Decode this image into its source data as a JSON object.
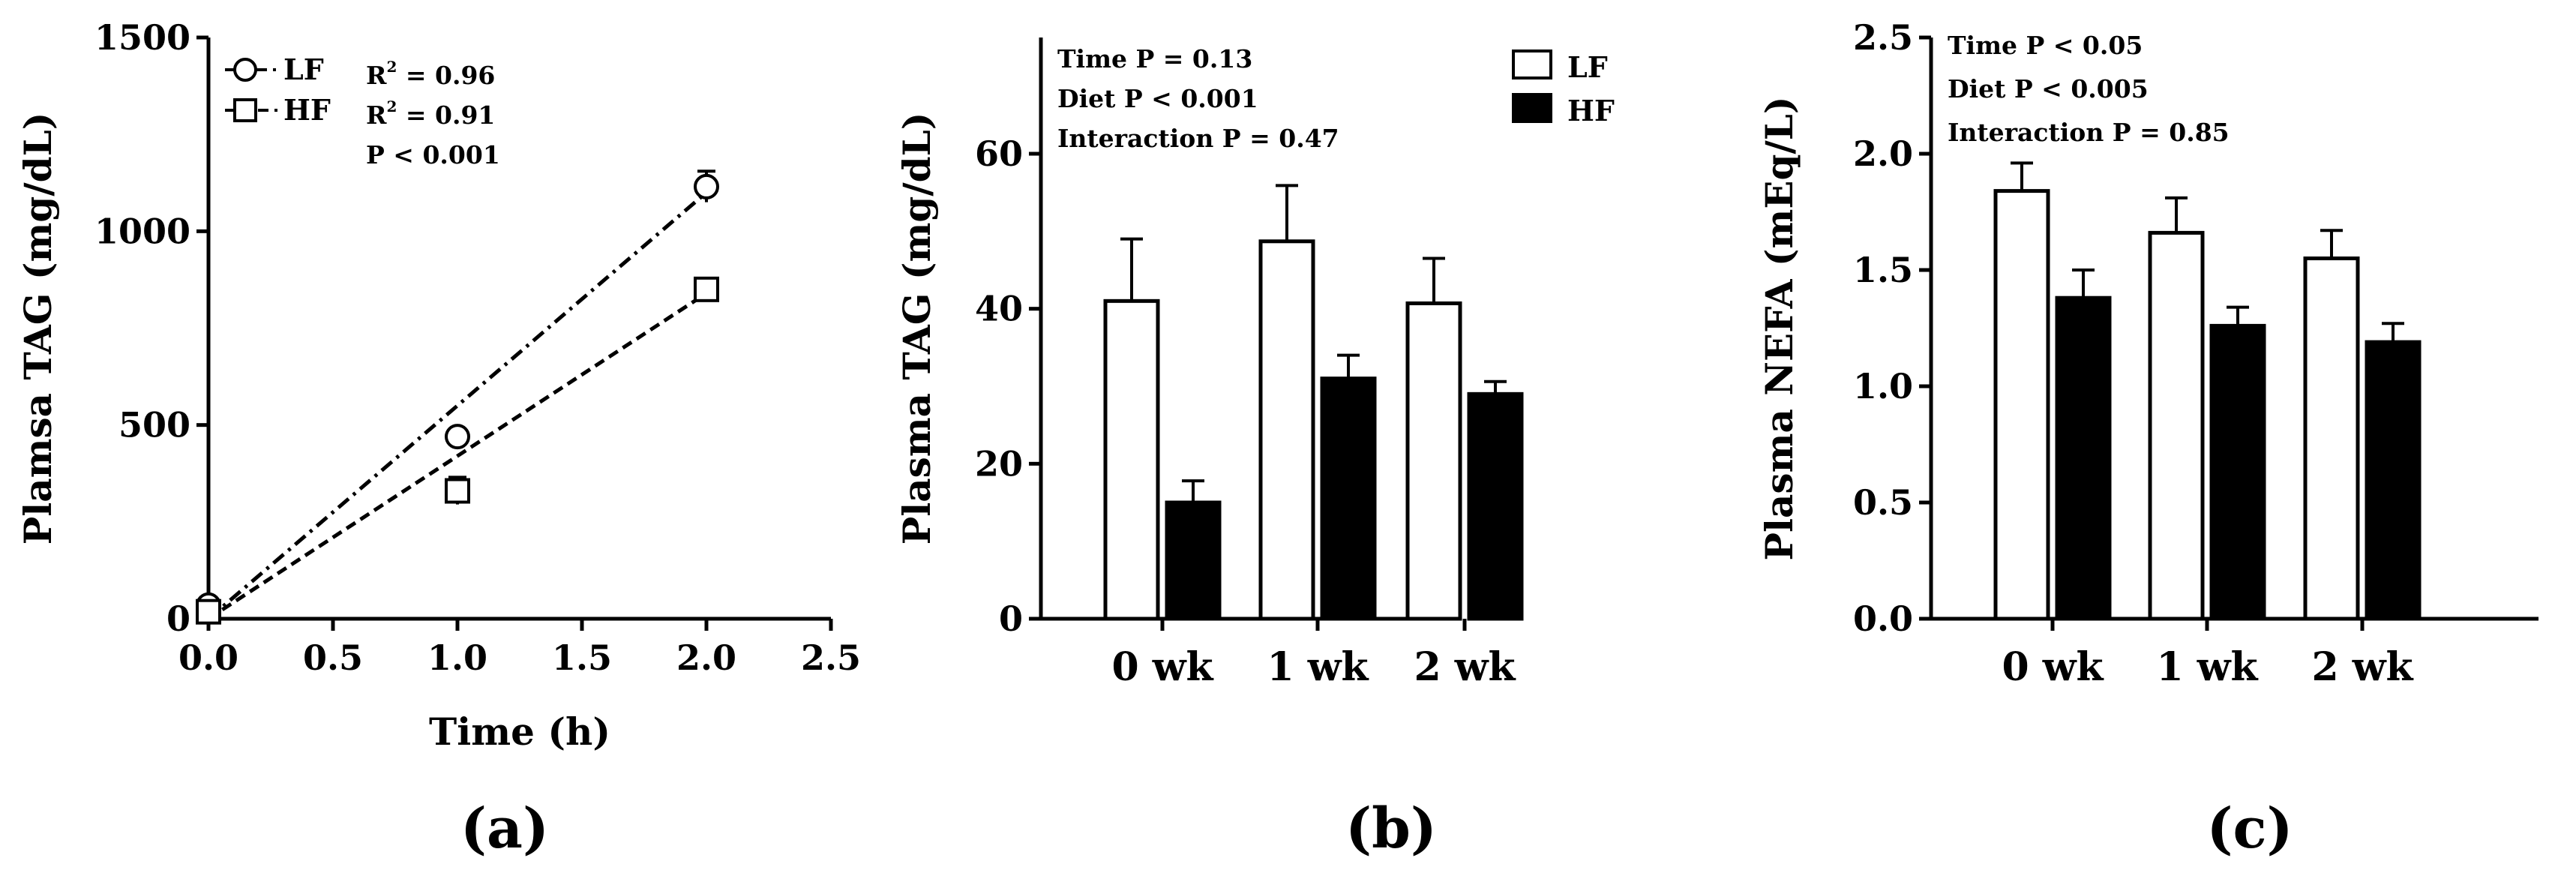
{
  "chart_data": [
    {
      "type": "scatter",
      "panel_label": "(a)",
      "xlabel": "Time (h)",
      "ylabel": "Plamsa TAG (mg/dL)",
      "xlim": [
        0,
        2.5
      ],
      "ylim": [
        0,
        1500
      ],
      "xticks": [
        0.0,
        0.5,
        1.0,
        1.5,
        2.0,
        2.5
      ],
      "xtick_labels": [
        "0.0",
        "0.5",
        "1.0",
        "1.5",
        "2.0",
        "2.5"
      ],
      "yticks": [
        0,
        500,
        1000,
        1500
      ],
      "ytick_labels": [
        "0",
        "500",
        "1000",
        "1500"
      ],
      "series": [
        {
          "name": "LF",
          "marker": "circle",
          "line": "dash-dot",
          "x": [
            0,
            1,
            2
          ],
          "y": [
            35,
            470,
            1115
          ],
          "err": [
            8,
            15,
            40
          ],
          "fit": [
            [
              0,
              0
            ],
            [
              2,
              1100
            ]
          ]
        },
        {
          "name": "HF",
          "marker": "square",
          "line": "dashed",
          "x": [
            0,
            1,
            2
          ],
          "y": [
            18,
            330,
            850
          ],
          "err": [
            6,
            35,
            28
          ],
          "fit": [
            [
              0,
              0
            ],
            [
              2,
              840
            ]
          ]
        }
      ],
      "annotations": {
        "r2_label": "R",
        "r2_exp": "2",
        "lf_r2": " = 0.96",
        "hf_r2": " = 0.91",
        "p": "P < 0.001"
      }
    },
    {
      "type": "bar",
      "panel_label": "(b)",
      "ylabel": "Plasma TAG (mg/dL)",
      "categories": [
        "0 wk",
        "1 wk",
        "2 wk"
      ],
      "ylim": [
        0,
        75
      ],
      "yticks": [
        0,
        20,
        40,
        60
      ],
      "ytick_labels": [
        "0",
        "20",
        "40",
        "60"
      ],
      "series": [
        {
          "name": "LF",
          "fill": "#ffffff",
          "values": [
            41,
            48.7,
            40.7
          ],
          "err": [
            8,
            7.2,
            5.8
          ]
        },
        {
          "name": "HF",
          "fill": "#000000",
          "values": [
            15,
            31,
            29
          ],
          "err": [
            2.8,
            3,
            1.6
          ]
        }
      ],
      "annotations": [
        "Time P = 0.13",
        "Diet P < 0.001",
        "Interaction P = 0.47"
      ]
    },
    {
      "type": "bar",
      "panel_label": "(c)",
      "ylabel": "Plasma NEFA (mEq/L)",
      "categories": [
        "0 wk",
        "1 wk",
        "2 wk"
      ],
      "ylim": [
        0,
        2.5
      ],
      "yticks": [
        0,
        0.5,
        1.0,
        1.5,
        2.0,
        2.5
      ],
      "ytick_labels": [
        "0.0",
        "0.5",
        "1.0",
        "1.5",
        "2.0",
        "2.5"
      ],
      "series": [
        {
          "name": "LF",
          "fill": "#ffffff",
          "values": [
            1.84,
            1.66,
            1.55
          ],
          "err": [
            0.12,
            0.15,
            0.12
          ]
        },
        {
          "name": "HF",
          "fill": "#000000",
          "values": [
            1.38,
            1.26,
            1.19
          ],
          "err": [
            0.12,
            0.08,
            0.08
          ]
        }
      ],
      "annotations": [
        "Time P < 0.05",
        "Diet P < 0.005",
        "Interaction P = 0.85"
      ]
    }
  ]
}
